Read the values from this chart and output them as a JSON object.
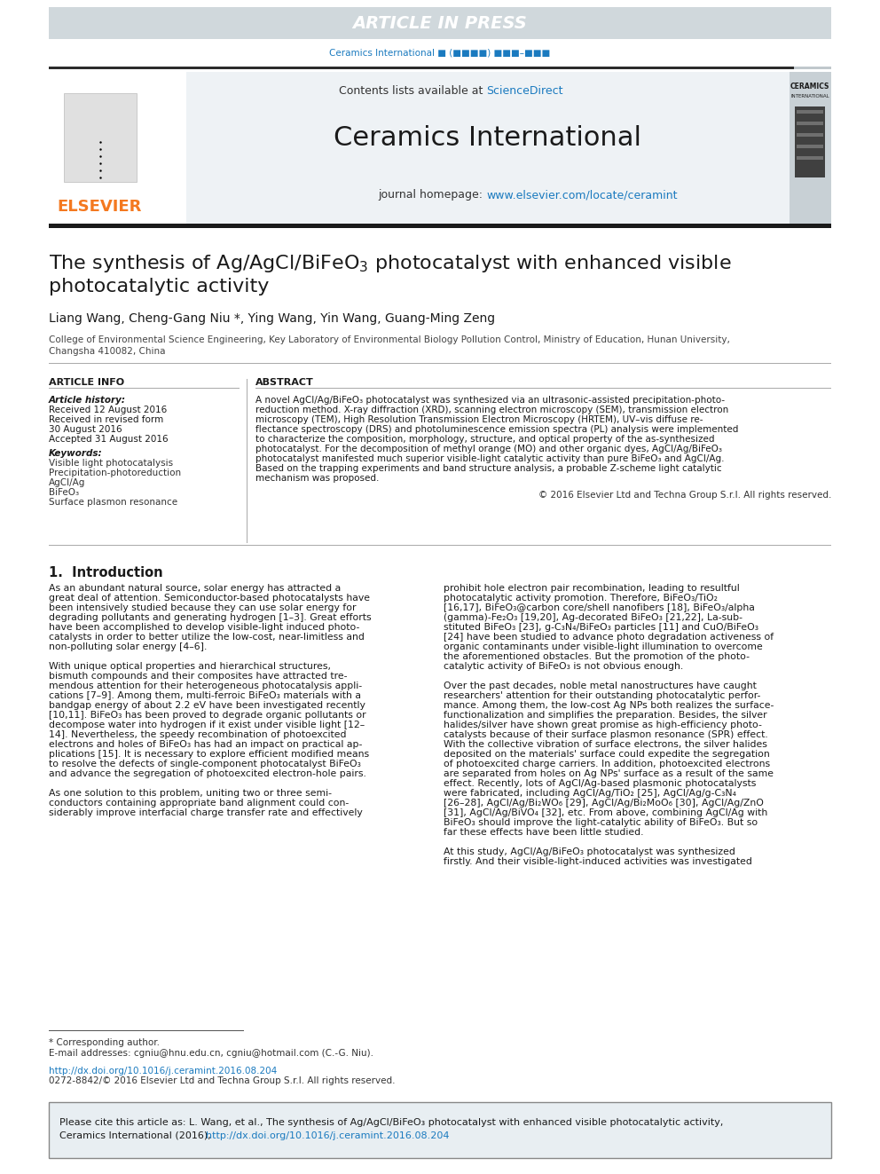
{
  "article_in_press_text": "ARTICLE IN PRESS",
  "article_in_press_bg": "#d0d8dc",
  "journal_ref_text": "Ceramics International ■ (■■■■) ■■■–■■■",
  "journal_title": "Ceramics International",
  "elsevier_color": "#f47920",
  "sciencedirect_color": "#1a7abf",
  "link_color": "#1a7abf",
  "header_bg": "#eef2f5",
  "bg_color": "#ffffff",
  "cite_box_bg": "#e8eef2",
  "doi_link": "http://dx.doi.org/10.1016/j.ceramint.2016.08.204",
  "issn_text": "0272-8842/© 2016 Elsevier Ltd and Techna Group S.r.l. All rights reserved."
}
